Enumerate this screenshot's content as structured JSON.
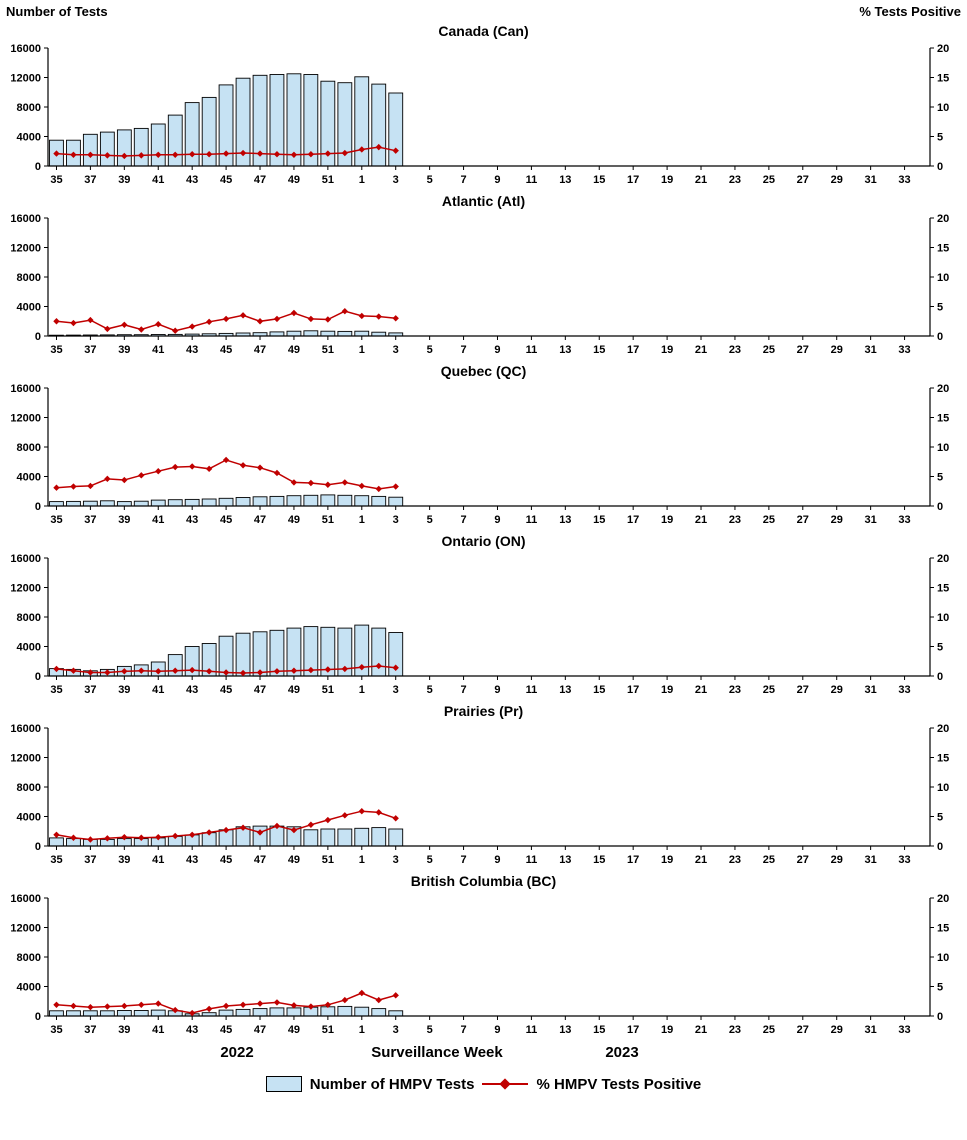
{
  "page": {
    "left_axis_title": "Number of Tests",
    "right_axis_title": "% Tests Positive",
    "x_axis_title": "Surveillance Week",
    "year_left": "2022",
    "year_right": "2023"
  },
  "legend": {
    "bars_label": "Number of HMPV Tests",
    "line_label": "% HMPV Tests Positive"
  },
  "colors": {
    "bar_fill": "#C6E2F3",
    "bar_stroke": "#000000",
    "line_color": "#C00000",
    "axis_color": "#000000"
  },
  "axes": {
    "left_ticks": [
      0,
      4000,
      8000,
      12000,
      16000
    ],
    "left_max": 16000,
    "right_ticks": [
      0,
      5,
      10,
      15,
      20
    ],
    "right_max": 20,
    "week_ticks": [
      35,
      37,
      39,
      41,
      43,
      45,
      47,
      49,
      51,
      1,
      3,
      5,
      7,
      9,
      11,
      13,
      15,
      17,
      19,
      21,
      23,
      25,
      27,
      29,
      31,
      33
    ],
    "weeks_total": 52,
    "first_week": 35,
    "grid": false
  },
  "chart_data": [
    {
      "type": "bar",
      "title": "Canada (Can)",
      "xlabel": "Surveillance Week",
      "left_ylabel": "Number of Tests",
      "right_ylabel": "% Tests Positive",
      "left_ylim": [
        0,
        16000
      ],
      "right_ylim": [
        0,
        20
      ],
      "weeks": [
        35,
        36,
        37,
        38,
        39,
        40,
        41,
        42,
        43,
        44,
        45,
        46,
        47,
        48,
        49,
        50,
        51,
        52,
        1,
        2,
        3
      ],
      "series": [
        {
          "name": "Number of HMPV Tests",
          "axis": "left",
          "values": [
            3500,
            3500,
            4300,
            4600,
            4900,
            5100,
            5700,
            6900,
            8600,
            9300,
            11000,
            11900,
            12300,
            12400,
            12500,
            12400,
            11500,
            11300,
            12100,
            11100,
            9900
          ]
        },
        {
          "name": "% HMPV Tests Positive",
          "axis": "right",
          "values": [
            2.1,
            1.9,
            1.9,
            1.8,
            1.7,
            1.8,
            1.9,
            1.9,
            2.0,
            2.0,
            2.1,
            2.2,
            2.1,
            2.0,
            1.9,
            2.0,
            2.1,
            2.2,
            2.8,
            3.2,
            2.6
          ]
        }
      ]
    },
    {
      "type": "bar",
      "title": "Atlantic (Atl)",
      "xlabel": "Surveillance Week",
      "left_ylabel": "Number of Tests",
      "right_ylabel": "% Tests Positive",
      "left_ylim": [
        0,
        16000
      ],
      "right_ylim": [
        0,
        20
      ],
      "weeks": [
        35,
        36,
        37,
        38,
        39,
        40,
        41,
        42,
        43,
        44,
        45,
        46,
        47,
        48,
        49,
        50,
        51,
        52,
        1,
        2,
        3
      ],
      "series": [
        {
          "name": "Number of HMPV Tests",
          "axis": "left",
          "values": [
            110,
            120,
            140,
            150,
            170,
            180,
            200,
            220,
            260,
            300,
            350,
            400,
            450,
            550,
            650,
            700,
            650,
            620,
            650,
            520,
            420
          ]
        },
        {
          "name": "% HMPV Tests Positive",
          "axis": "right",
          "values": [
            2.5,
            2.2,
            2.7,
            1.2,
            1.9,
            1.1,
            2.0,
            0.9,
            1.6,
            2.4,
            2.9,
            3.5,
            2.5,
            2.9,
            3.9,
            2.9,
            2.8,
            4.2,
            3.4,
            3.3,
            3.0
          ]
        }
      ]
    },
    {
      "type": "bar",
      "title": "Quebec (QC)",
      "xlabel": "Surveillance Week",
      "left_ylabel": "Number of Tests",
      "right_ylabel": "% Tests Positive",
      "left_ylim": [
        0,
        16000
      ],
      "right_ylim": [
        0,
        20
      ],
      "weeks": [
        35,
        36,
        37,
        38,
        39,
        40,
        41,
        42,
        43,
        44,
        45,
        46,
        47,
        48,
        49,
        50,
        51,
        52,
        1,
        2,
        3
      ],
      "series": [
        {
          "name": "Number of HMPV Tests",
          "axis": "left",
          "values": [
            600,
            620,
            650,
            700,
            600,
            650,
            800,
            850,
            900,
            950,
            1050,
            1150,
            1250,
            1300,
            1400,
            1450,
            1500,
            1450,
            1400,
            1300,
            1200
          ]
        },
        {
          "name": "% HMPV Tests Positive",
          "axis": "right",
          "values": [
            3.1,
            3.3,
            3.4,
            4.6,
            4.4,
            5.2,
            5.9,
            6.6,
            6.7,
            6.3,
            7.8,
            6.9,
            6.5,
            5.6,
            4.0,
            3.9,
            3.6,
            4.0,
            3.4,
            2.9,
            3.3
          ]
        }
      ]
    },
    {
      "type": "bar",
      "title": "Ontario (ON)",
      "xlabel": "Surveillance Week",
      "left_ylabel": "Number of Tests",
      "right_ylabel": "% Tests Positive",
      "left_ylim": [
        0,
        16000
      ],
      "right_ylim": [
        0,
        20
      ],
      "weeks": [
        35,
        36,
        37,
        38,
        39,
        40,
        41,
        42,
        43,
        44,
        45,
        46,
        47,
        48,
        49,
        50,
        51,
        52,
        1,
        2,
        3
      ],
      "series": [
        {
          "name": "Number of HMPV Tests",
          "axis": "left",
          "values": [
            1000,
            900,
            700,
            900,
            1300,
            1500,
            1900,
            2900,
            4000,
            4400,
            5400,
            5800,
            6000,
            6200,
            6500,
            6700,
            6600,
            6500,
            6900,
            6500,
            5900
          ]
        },
        {
          "name": "% HMPV Tests Positive",
          "axis": "right",
          "values": [
            1.2,
            0.9,
            0.6,
            0.6,
            0.8,
            0.9,
            0.8,
            0.9,
            1.0,
            0.8,
            0.6,
            0.5,
            0.6,
            0.8,
            0.9,
            1.0,
            1.1,
            1.2,
            1.5,
            1.7,
            1.4
          ]
        }
      ]
    },
    {
      "type": "bar",
      "title": "Prairies (Pr)",
      "xlabel": "Surveillance Week",
      "left_ylabel": "Number of Tests",
      "right_ylabel": "% Tests Positive",
      "left_ylim": [
        0,
        16000
      ],
      "right_ylim": [
        0,
        20
      ],
      "weeks": [
        35,
        36,
        37,
        38,
        39,
        40,
        41,
        42,
        43,
        44,
        45,
        46,
        47,
        48,
        49,
        50,
        51,
        52,
        1,
        2,
        3
      ],
      "series": [
        {
          "name": "Number of HMPV Tests",
          "axis": "left",
          "values": [
            1100,
            1000,
            900,
            900,
            1000,
            1000,
            1100,
            1300,
            1500,
            1800,
            2200,
            2600,
            2700,
            2700,
            2600,
            2200,
            2300,
            2300,
            2400,
            2500,
            2300
          ]
        },
        {
          "name": "% HMPV Tests Positive",
          "axis": "right",
          "values": [
            1.9,
            1.4,
            1.1,
            1.3,
            1.5,
            1.4,
            1.5,
            1.7,
            1.9,
            2.3,
            2.7,
            3.1,
            2.3,
            3.4,
            2.7,
            3.6,
            4.4,
            5.2,
            5.9,
            5.7,
            4.7
          ]
        }
      ]
    },
    {
      "type": "bar",
      "title": "British Columbia (BC)",
      "xlabel": "Surveillance Week",
      "left_ylabel": "Number of Tests",
      "right_ylabel": "% Tests Positive",
      "left_ylim": [
        0,
        16000
      ],
      "right_ylim": [
        0,
        20
      ],
      "weeks": [
        35,
        36,
        37,
        38,
        39,
        40,
        41,
        42,
        43,
        44,
        45,
        46,
        47,
        48,
        49,
        50,
        51,
        52,
        1,
        2,
        3
      ],
      "series": [
        {
          "name": "Number of HMPV Tests",
          "axis": "left",
          "values": [
            700,
            700,
            700,
            700,
            750,
            750,
            800,
            700,
            300,
            450,
            800,
            900,
            1000,
            1100,
            1100,
            1200,
            1250,
            1300,
            1200,
            1000,
            700
          ]
        },
        {
          "name": "% HMPV Tests Positive",
          "axis": "right",
          "values": [
            1.9,
            1.7,
            1.5,
            1.6,
            1.7,
            1.9,
            2.1,
            1.0,
            0.5,
            1.2,
            1.7,
            1.9,
            2.1,
            2.3,
            1.8,
            1.6,
            1.9,
            2.7,
            3.9,
            2.7,
            3.5
          ]
        }
      ]
    }
  ]
}
